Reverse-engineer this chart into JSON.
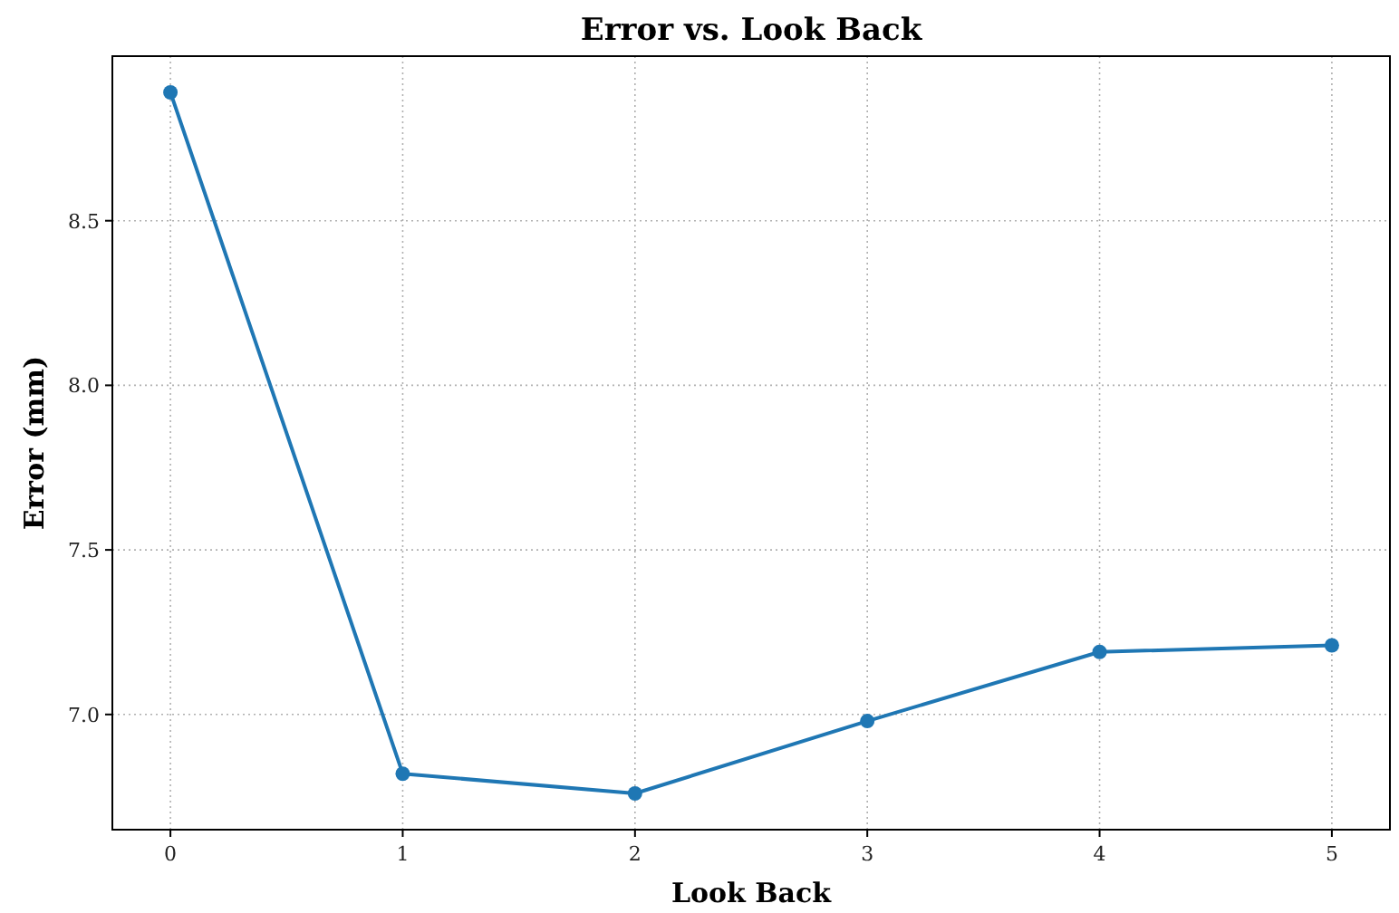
{
  "chart_data": {
    "type": "line",
    "title": "Error vs. Look Back",
    "xlabel": "Look Back",
    "ylabel": "Error (mm)",
    "x": [
      0,
      1,
      2,
      3,
      4,
      5
    ],
    "series": [
      {
        "color": "#1f77b4",
        "values": [
          8.89,
          6.82,
          6.76,
          6.98,
          7.19,
          7.21
        ]
      }
    ],
    "xlim": [
      -0.25,
      5.25
    ],
    "xticks": [
      0,
      1,
      2,
      3,
      4,
      5
    ],
    "ylim": [
      6.65,
      9.0
    ],
    "yticks": [
      {
        "value": 7.0,
        "label": "7.0"
      },
      {
        "value": 7.5,
        "label": "7.5"
      },
      {
        "value": 8.0,
        "label": "8.0"
      },
      {
        "value": 8.5,
        "label": "8.5"
      }
    ],
    "grid": true,
    "marker": "circle",
    "line_style": "solid"
  }
}
